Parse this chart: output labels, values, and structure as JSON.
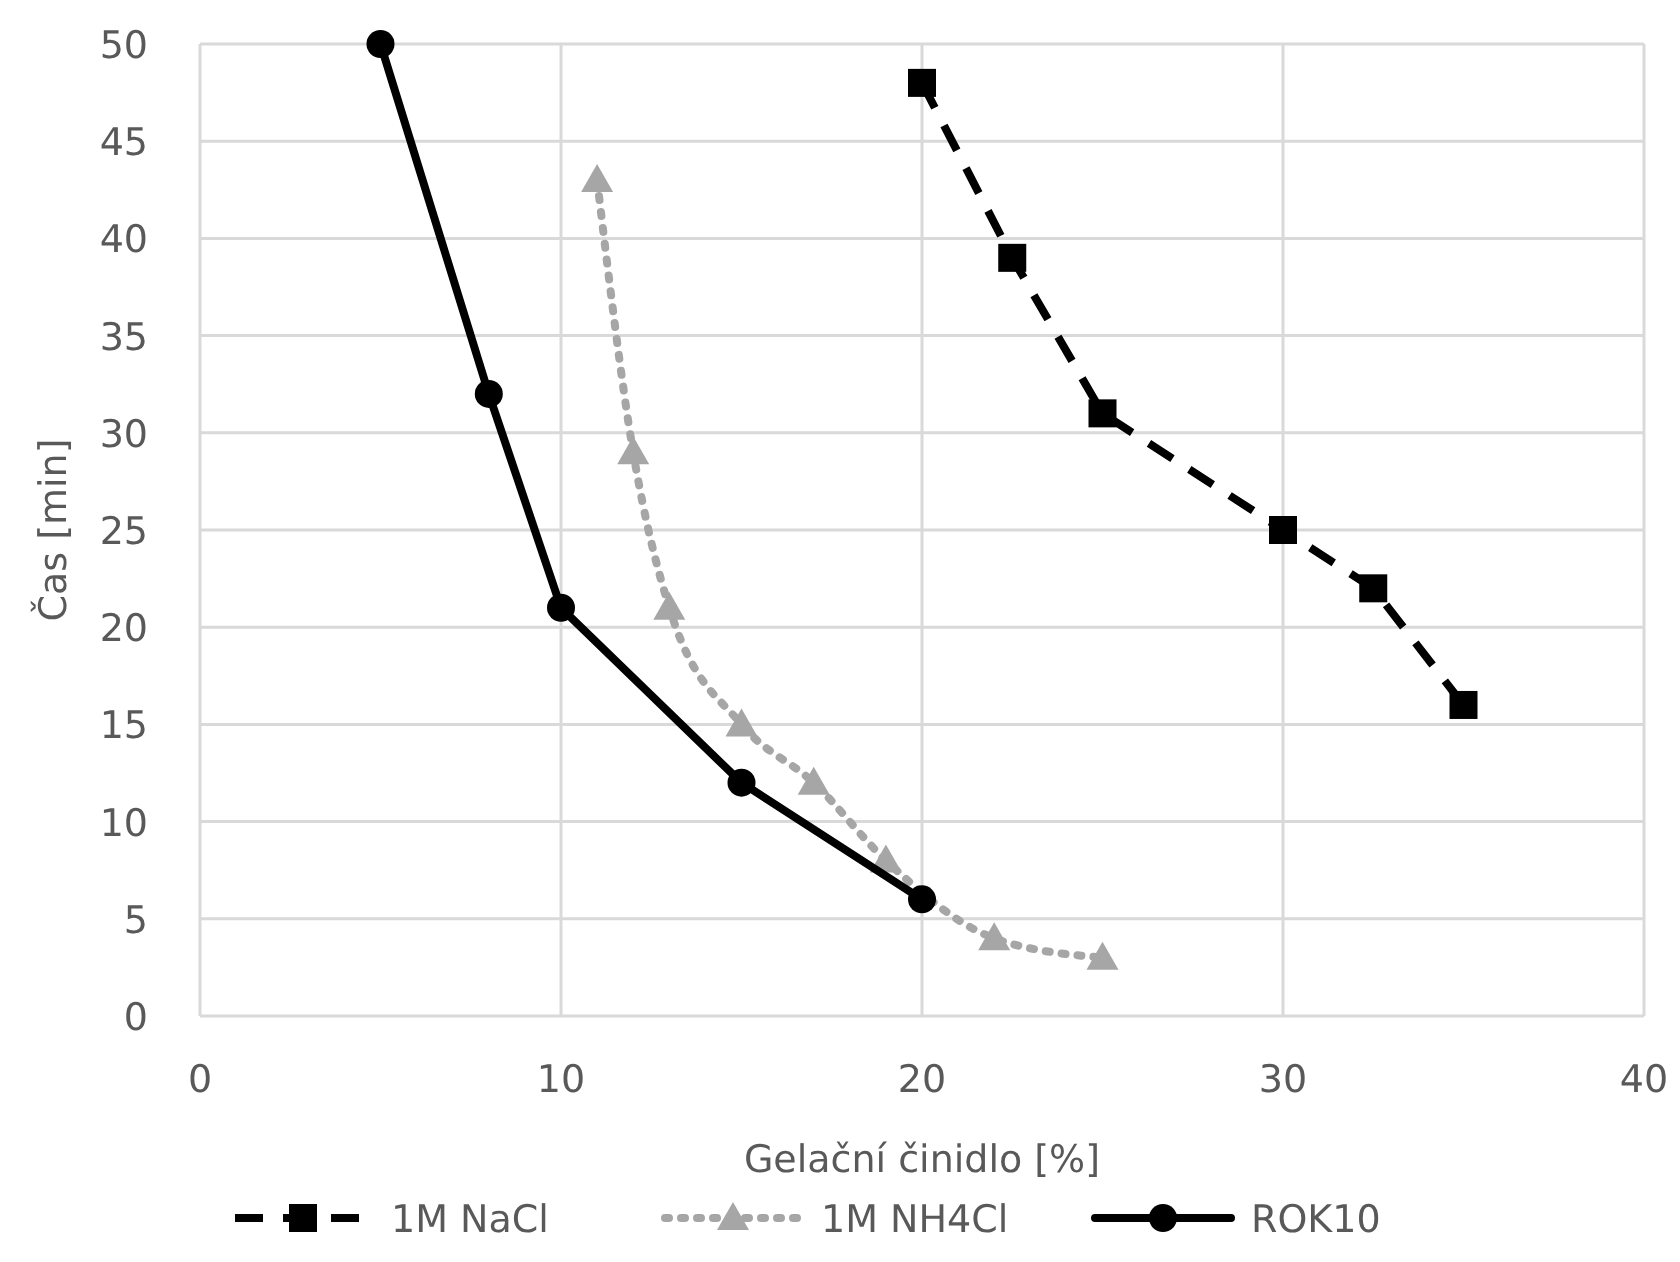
{
  "chart_data": {
    "type": "line",
    "xlabel": "Gelační činidlo [%]",
    "ylabel": "Čas [min]",
    "xlim": [
      0,
      40
    ],
    "xticks": [
      0,
      10,
      20,
      30,
      40
    ],
    "ylim": [
      0,
      50
    ],
    "yticks": [
      0,
      5,
      10,
      15,
      20,
      25,
      30,
      35,
      40,
      45,
      50
    ],
    "grid": true,
    "legend": "bottom",
    "series": [
      {
        "name": "1M NaCl",
        "color": "#000000",
        "marker": "square",
        "line_style": "dashed",
        "x": [
          20,
          22.5,
          25,
          30,
          32.5,
          35
        ],
        "values": [
          48,
          39,
          31,
          25,
          22,
          16
        ]
      },
      {
        "name": "1M NH4Cl",
        "color": "#a6a6a6",
        "marker": "triangle",
        "line_style": "dotted",
        "x": [
          11,
          12,
          13,
          15,
          17,
          19,
          22,
          25
        ],
        "values": [
          43,
          29,
          21,
          15,
          12,
          8,
          4,
          3
        ]
      },
      {
        "name": "ROK10",
        "color": "#000000",
        "marker": "circle",
        "line_style": "solid",
        "x": [
          5,
          8,
          10,
          15,
          20
        ],
        "values": [
          50,
          32,
          21,
          12,
          6
        ]
      }
    ]
  }
}
